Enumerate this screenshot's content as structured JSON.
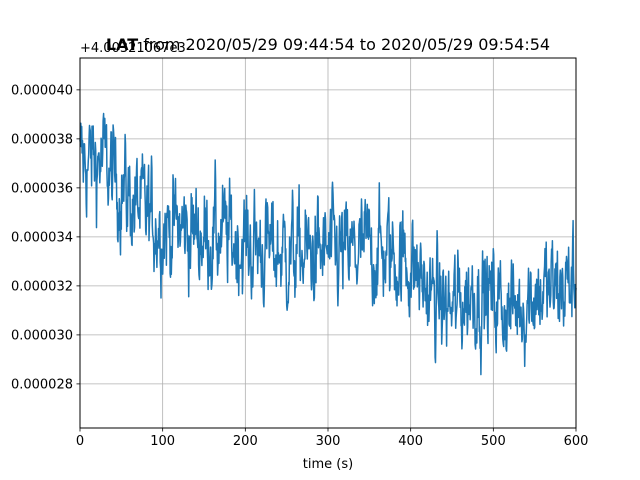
{
  "chart_data": {
    "type": "line",
    "title_bold": "LAT",
    "title_rest": " from 2020/05/29 09:44:54 to 2020/05/29 09:54:54",
    "offset_text": "+4.00321067e3",
    "xlabel": "time (s)",
    "ylabel": "",
    "xlim": [
      0,
      600
    ],
    "ylim": [
      2.62e-05,
      4.13e-05
    ],
    "x_ticks": [
      "0",
      "100",
      "200",
      "300",
      "400",
      "500",
      "600"
    ],
    "x_tick_values": [
      0,
      100,
      200,
      300,
      400,
      500,
      600
    ],
    "y_ticks": [
      "0.000028",
      "0.000030",
      "0.000032",
      "0.000034",
      "0.000036",
      "0.000038",
      "0.000040"
    ],
    "y_tick_values": [
      2.8e-05,
      3e-05,
      3.2e-05,
      3.4e-05,
      3.6e-05,
      3.8e-05,
      4e-05
    ],
    "grid": true,
    "series": [
      {
        "color": "#1f77b4",
        "x": [
          0,
          25,
          50,
          75,
          100,
          125,
          150,
          175,
          200,
          225,
          250,
          275,
          300,
          325,
          350,
          375,
          400,
          425,
          450,
          475,
          500,
          525,
          550,
          575,
          600
        ],
        "y": [
          3.7e-05,
          3.72e-05,
          3.6e-05,
          3.5e-05,
          3.45e-05,
          3.43e-05,
          3.41e-05,
          3.4e-05,
          3.37e-05,
          3.35e-05,
          3.33e-05,
          3.33e-05,
          3.33e-05,
          3.32e-05,
          3.35e-05,
          3.33e-05,
          3.3e-05,
          3.15e-05,
          3.1e-05,
          3.18e-05,
          3.15e-05,
          3.1e-05,
          3.18e-05,
          3.18e-05,
          3.22e-05
        ]
      }
    ]
  }
}
